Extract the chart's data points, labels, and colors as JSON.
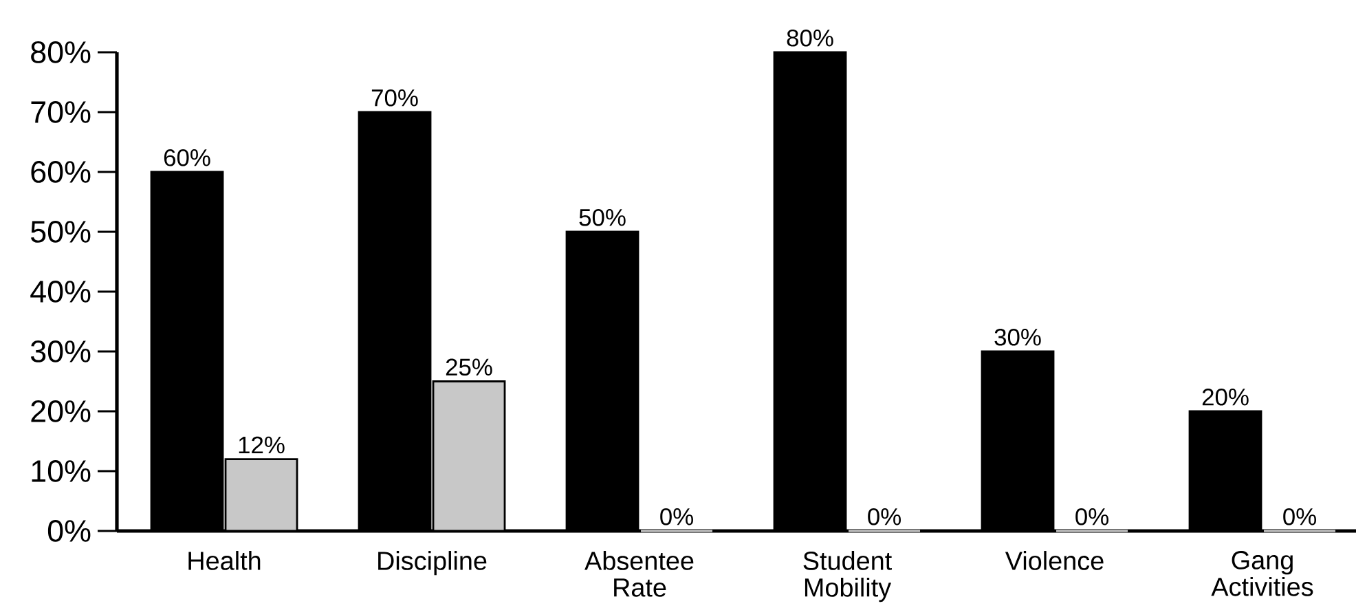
{
  "chart_data": {
    "type": "bar",
    "categories": [
      "Health",
      "Discipline",
      "Absentee Rate",
      "Student Mobility",
      "Violence",
      "Gang Activities"
    ],
    "series": [
      {
        "color": "#000000",
        "values": [
          60,
          70,
          50,
          80,
          30,
          20
        ],
        "value_labels": [
          "60%",
          "70%",
          "50%",
          "80%",
          "30%",
          "20%"
        ]
      },
      {
        "color": "#c8c8c8",
        "values": [
          12,
          25,
          0,
          0,
          0,
          0
        ],
        "value_labels": [
          "12%",
          "25%",
          "0%",
          "0%",
          "0%",
          "0%"
        ]
      }
    ],
    "ylim": [
      0,
      80
    ],
    "yticks": [
      {
        "value": 0,
        "label": "0%"
      },
      {
        "value": 10,
        "label": "10%"
      },
      {
        "value": 20,
        "label": "20%"
      },
      {
        "value": 30,
        "label": "30%"
      },
      {
        "value": 40,
        "label": "40%"
      },
      {
        "value": 50,
        "label": "50%"
      },
      {
        "value": 60,
        "label": "60%"
      },
      {
        "value": 70,
        "label": "70%"
      },
      {
        "value": 80,
        "label": "80%"
      }
    ]
  }
}
